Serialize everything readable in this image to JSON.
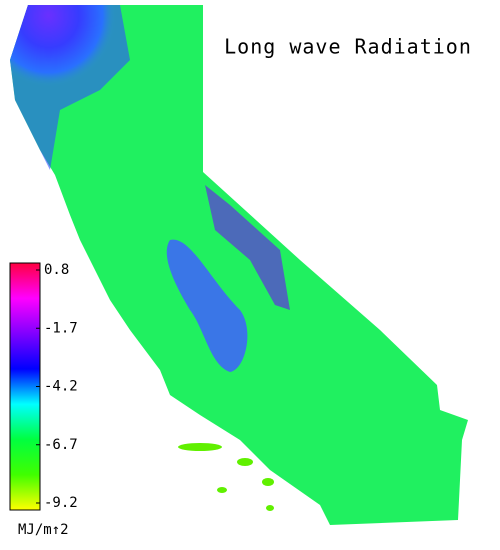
{
  "title": "Long wave Radiation",
  "colorbar": {
    "range": [
      -9.2,
      0.8
    ],
    "ticks": [
      0.8,
      -1.7,
      -4.2,
      -6.7,
      -9.2
    ],
    "unit": "MJ/m↑2",
    "colors": [
      "#ff0040",
      "#ff00ff",
      "#8000ff",
      "#0000ff",
      "#00ffff",
      "#00ff40",
      "#40ff00",
      "#ffff00"
    ]
  }
}
